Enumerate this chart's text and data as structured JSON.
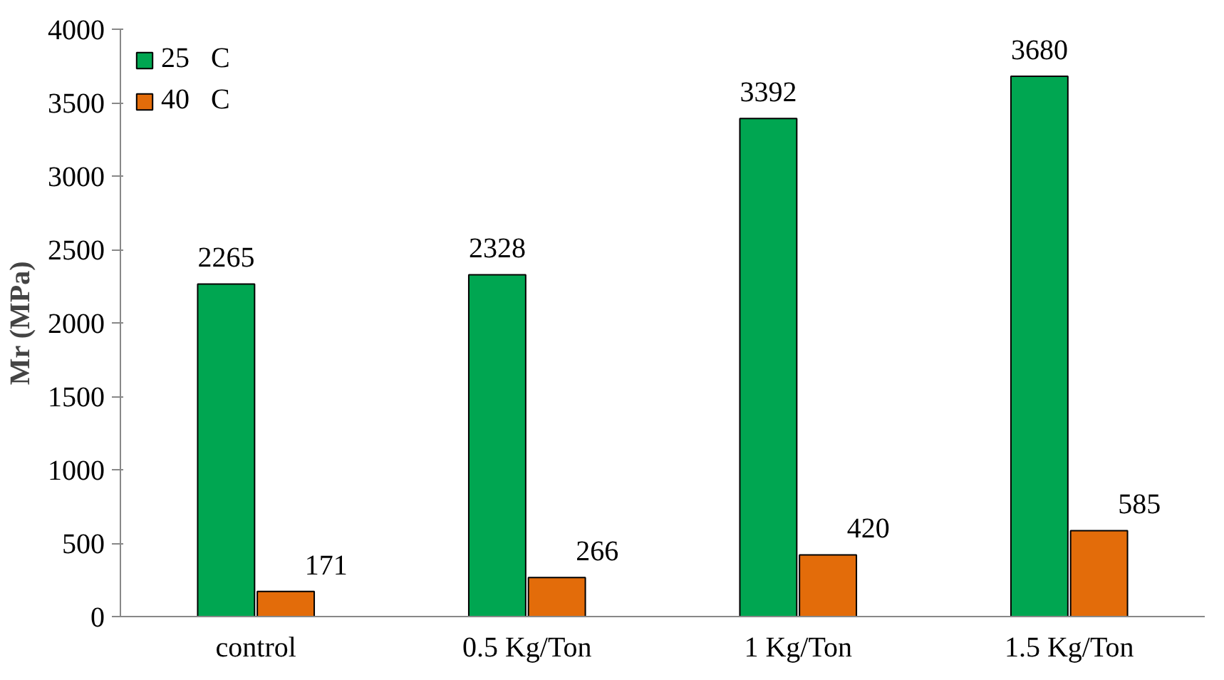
{
  "chart_data": {
    "type": "bar",
    "ylabel": "Mr (MPa)",
    "categories": [
      "control",
      "0.5 Kg/Ton",
      "1 Kg/Ton",
      "1.5 Kg/Ton"
    ],
    "series": [
      {
        "name": "25   C",
        "color": "#00a651",
        "values": [
          2265,
          2328,
          3392,
          3680
        ]
      },
      {
        "name": "40   C",
        "color": "#e36c0a",
        "values": [
          171,
          266,
          420,
          585
        ]
      }
    ],
    "ylim": [
      0,
      4000
    ],
    "yticks": [
      0,
      500,
      1000,
      1500,
      2000,
      2500,
      3000,
      3500,
      4000
    ],
    "data_labels": true,
    "legend": "top left",
    "grid": false
  }
}
